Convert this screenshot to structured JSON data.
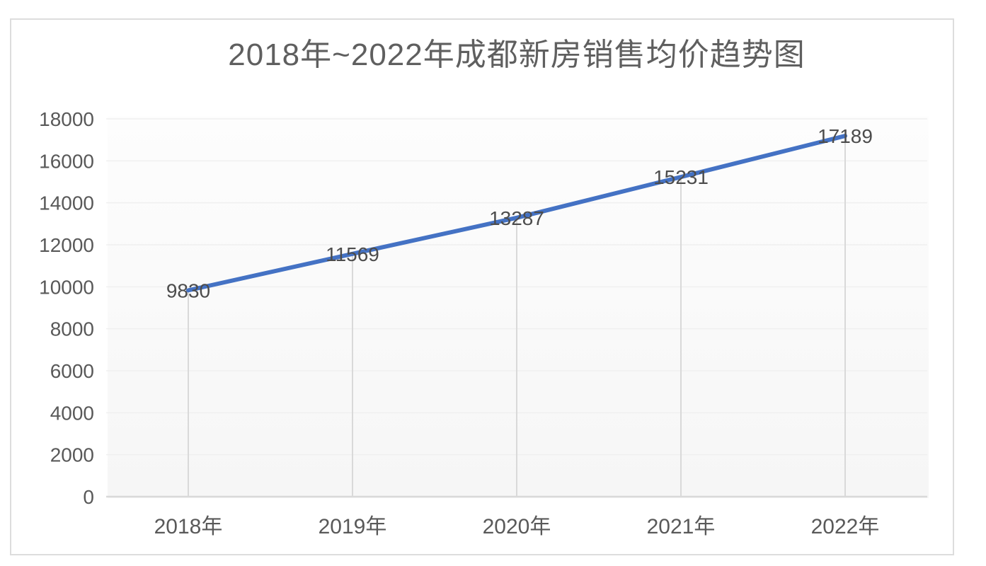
{
  "chart_data": {
    "type": "line",
    "title": "2018年~2022年成都新房销售均价趋势图",
    "categories": [
      "2018年",
      "2019年",
      "2020年",
      "2021年",
      "2022年"
    ],
    "values": [
      9830,
      11569,
      13287,
      15231,
      17189
    ],
    "data_labels": [
      "9830",
      "11569",
      "13287",
      "15231",
      "17189"
    ],
    "ytick_labels": [
      "0",
      "2000",
      "4000",
      "6000",
      "8000",
      "10000",
      "12000",
      "14000",
      "16000",
      "18000"
    ],
    "ylim": [
      0,
      18000
    ],
    "ytick_step": 2000,
    "xlabel": "",
    "ylabel": "",
    "legend": "none",
    "grid": "vertical drop lines from each data point to x-axis",
    "data_label_position": "centered on data points",
    "colors": {
      "line": "#4472C4",
      "axis_line": "#d9d9d9",
      "drop_line": "#d9d9d9",
      "tick_label": "#595959",
      "data_label": "#4c4c4c",
      "title": "#5f5f5f",
      "frame_border": "#dddddd",
      "plot_background_top": "#fdfdfd",
      "plot_background_bottom": "#f6f6f6"
    }
  }
}
